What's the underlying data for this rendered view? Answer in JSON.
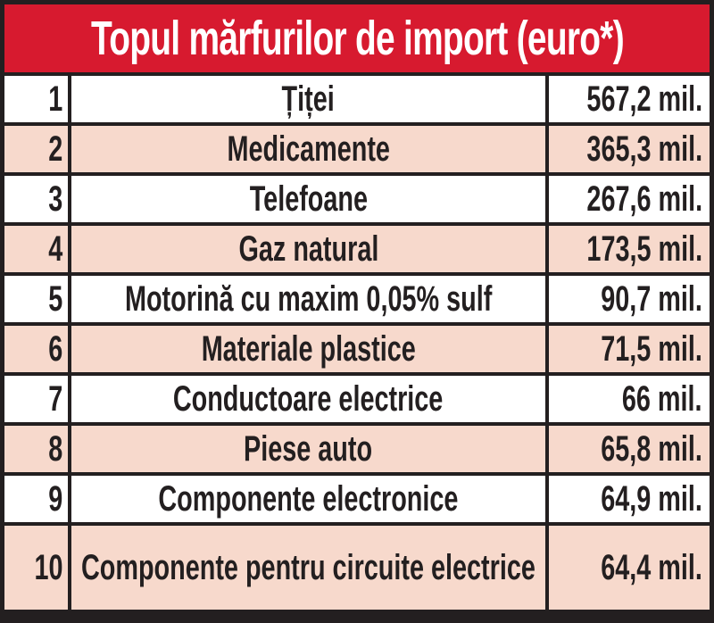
{
  "title": "Topul mărfurilor de import (euro*)",
  "colors": {
    "header_bg": "#d71a2f",
    "header_text": "#ffffff",
    "row_white": "#ffffff",
    "row_shaded": "#f7d9cc",
    "border": "#231f20"
  },
  "rows": [
    {
      "rank": "1",
      "name": "Țiței",
      "value": "567,2 mil."
    },
    {
      "rank": "2",
      "name": "Medicamente",
      "value": "365,3 mil."
    },
    {
      "rank": "3",
      "name": "Telefoane",
      "value": "267,6 mil."
    },
    {
      "rank": "4",
      "name": "Gaz natural",
      "value": "173,5 mil."
    },
    {
      "rank": "5",
      "name": "Motorină cu maxim 0,05% sulf",
      "value": "90,7 mil."
    },
    {
      "rank": "6",
      "name": "Materiale plastice",
      "value": "71,5 mil."
    },
    {
      "rank": "7",
      "name": "Conductoare electrice",
      "value": "66 mil."
    },
    {
      "rank": "8",
      "name": "Piese auto",
      "value": "65,8 mil."
    },
    {
      "rank": "9",
      "name": "Componente electronice",
      "value": "64,9 mil."
    },
    {
      "rank": "10",
      "name_line1": "Componente pentru",
      "name_line2": "circuite electrice",
      "value": "64,4 mil."
    }
  ]
}
